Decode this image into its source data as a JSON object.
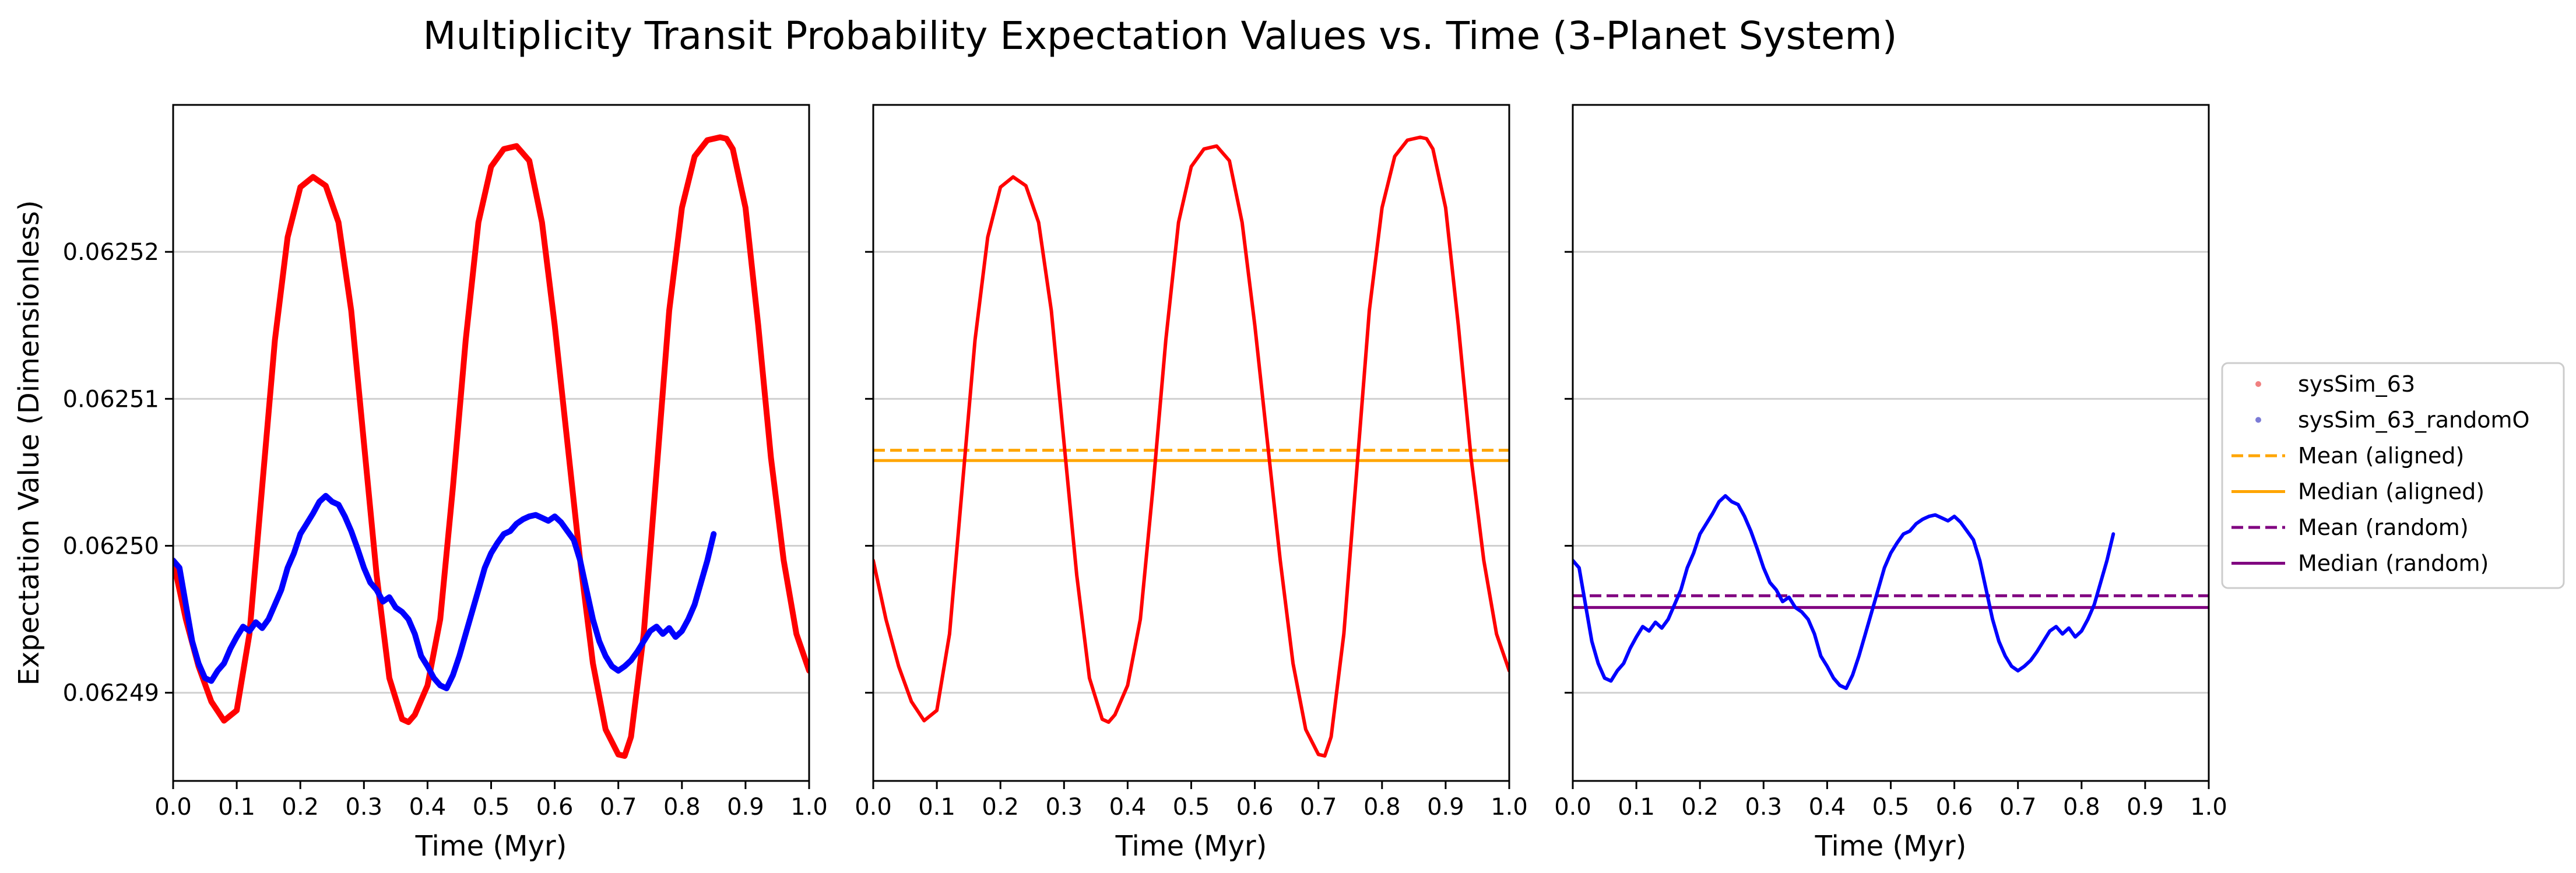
{
  "chart_data": {
    "type": "line",
    "title": "Multiplicity Transit Probability Expectation Values vs. Time (3-Planet System)",
    "ylabel": "Expectation Value (Dimensionless)",
    "xlabel": "Time (Myr)",
    "xlim": [
      0.0,
      1.0
    ],
    "ylim": [
      0.062484,
      0.06253
    ],
    "shared_y": true,
    "grid": "horizontal",
    "x_ticks": [
      "0.0",
      "0.1",
      "0.2",
      "0.3",
      "0.4",
      "0.5",
      "0.6",
      "0.7",
      "0.8",
      "0.9",
      "1.0"
    ],
    "y_ticks": [
      {
        "value": 0.06249,
        "label": "0.06249"
      },
      {
        "value": 0.0625,
        "label": "0.06250"
      },
      {
        "value": 0.06251,
        "label": "0.06251"
      },
      {
        "value": 0.06252,
        "label": "0.06252"
      }
    ],
    "legend": {
      "location": "right",
      "entries": [
        {
          "label": "sysSim_63",
          "style": "point",
          "color": "#f08080"
        },
        {
          "label": "sysSim_63_randomO",
          "style": "point",
          "color": "#7b7bd6"
        },
        {
          "label": "Mean (aligned)",
          "style": "dashed",
          "color": "#ffa500"
        },
        {
          "label": "Median (aligned)",
          "style": "solid",
          "color": "#ffa500"
        },
        {
          "label": "Mean (random)",
          "style": "dashed",
          "color": "#800080"
        },
        {
          "label": "Median (random)",
          "style": "solid",
          "color": "#800080"
        }
      ]
    },
    "series_aligned": {
      "color": "#ff0000",
      "x": [
        0.0,
        0.02,
        0.04,
        0.06,
        0.08,
        0.1,
        0.12,
        0.14,
        0.16,
        0.18,
        0.2,
        0.22,
        0.24,
        0.26,
        0.28,
        0.3,
        0.32,
        0.34,
        0.36,
        0.37,
        0.38,
        0.4,
        0.42,
        0.44,
        0.46,
        0.48,
        0.5,
        0.52,
        0.54,
        0.56,
        0.58,
        0.6,
        0.62,
        0.64,
        0.66,
        0.68,
        0.7,
        0.71,
        0.72,
        0.74,
        0.76,
        0.78,
        0.8,
        0.82,
        0.84,
        0.86,
        0.87,
        0.88,
        0.9,
        0.92,
        0.94,
        0.96,
        0.98,
        1.0
      ],
      "y": [
        0.062499,
        0.062495,
        0.0624918,
        0.0624894,
        0.0624881,
        0.0624888,
        0.062494,
        0.062504,
        0.062514,
        0.062521,
        0.0625244,
        0.0625251,
        0.0625245,
        0.062522,
        0.062516,
        0.062507,
        0.062498,
        0.062491,
        0.0624882,
        0.062488,
        0.0624885,
        0.0624905,
        0.062495,
        0.062504,
        0.062514,
        0.062522,
        0.0625258,
        0.062527,
        0.0625272,
        0.0625262,
        0.062522,
        0.062515,
        0.062507,
        0.062499,
        0.062492,
        0.0624875,
        0.0624858,
        0.0624857,
        0.062487,
        0.062494,
        0.062505,
        0.062516,
        0.062523,
        0.0625265,
        0.0625276,
        0.0625278,
        0.0625277,
        0.062527,
        0.062523,
        0.062515,
        0.062506,
        0.062499,
        0.062494,
        0.0624915
      ]
    },
    "series_random": {
      "color": "#0000ff",
      "x": [
        0.0,
        0.01,
        0.02,
        0.03,
        0.04,
        0.05,
        0.06,
        0.07,
        0.08,
        0.09,
        0.1,
        0.11,
        0.12,
        0.13,
        0.14,
        0.15,
        0.16,
        0.17,
        0.18,
        0.19,
        0.2,
        0.21,
        0.22,
        0.23,
        0.24,
        0.25,
        0.26,
        0.27,
        0.28,
        0.29,
        0.3,
        0.31,
        0.32,
        0.33,
        0.34,
        0.35,
        0.36,
        0.37,
        0.38,
        0.39,
        0.4,
        0.41,
        0.42,
        0.43,
        0.44,
        0.45,
        0.46,
        0.47,
        0.48,
        0.49,
        0.5,
        0.51,
        0.52,
        0.53,
        0.54,
        0.55,
        0.56,
        0.57,
        0.58,
        0.59,
        0.6,
        0.61,
        0.62,
        0.63,
        0.64,
        0.65,
        0.66,
        0.67,
        0.68,
        0.69,
        0.7,
        0.71,
        0.72,
        0.73,
        0.74,
        0.75,
        0.76,
        0.77,
        0.78,
        0.79,
        0.8,
        0.81,
        0.82,
        0.83,
        0.84,
        0.85
      ],
      "y": [
        0.062499,
        0.0624985,
        0.062496,
        0.0624935,
        0.062492,
        0.062491,
        0.0624908,
        0.0624915,
        0.062492,
        0.062493,
        0.0624938,
        0.0624945,
        0.0624942,
        0.0624948,
        0.0624944,
        0.062495,
        0.062496,
        0.062497,
        0.0624985,
        0.0624995,
        0.0625008,
        0.0625015,
        0.0625022,
        0.062503,
        0.0625034,
        0.062503,
        0.0625028,
        0.062502,
        0.062501,
        0.0624998,
        0.0624985,
        0.0624975,
        0.062497,
        0.0624962,
        0.0624965,
        0.0624958,
        0.0624955,
        0.062495,
        0.062494,
        0.0624925,
        0.0624918,
        0.062491,
        0.0624905,
        0.0624903,
        0.0624912,
        0.0624925,
        0.062494,
        0.0624955,
        0.062497,
        0.0624985,
        0.0624995,
        0.0625002,
        0.0625008,
        0.062501,
        0.0625015,
        0.0625018,
        0.062502,
        0.0625021,
        0.0625019,
        0.0625017,
        0.062502,
        0.0625016,
        0.062501,
        0.0625004,
        0.062499,
        0.062497,
        0.062495,
        0.0624935,
        0.0624925,
        0.0624918,
        0.0624915,
        0.0624918,
        0.0624922,
        0.0624928,
        0.0624935,
        0.0624942,
        0.0624945,
        0.062494,
        0.0624944,
        0.0624938,
        0.0624942,
        0.062495,
        0.062496,
        0.0624975,
        0.062499,
        0.0625008
      ]
    },
    "mean_aligned": 0.0625065,
    "median_aligned": 0.0625058,
    "mean_random": 0.0624966,
    "median_random": 0.0624958,
    "panels": [
      {
        "series": [
          "aligned",
          "random"
        ],
        "thick": true,
        "hlines": []
      },
      {
        "series": [
          "aligned"
        ],
        "thick": false,
        "hlines": [
          "mean_aligned",
          "median_aligned"
        ]
      },
      {
        "series": [
          "random"
        ],
        "thick": false,
        "hlines": [
          "mean_random",
          "median_random"
        ]
      }
    ]
  }
}
